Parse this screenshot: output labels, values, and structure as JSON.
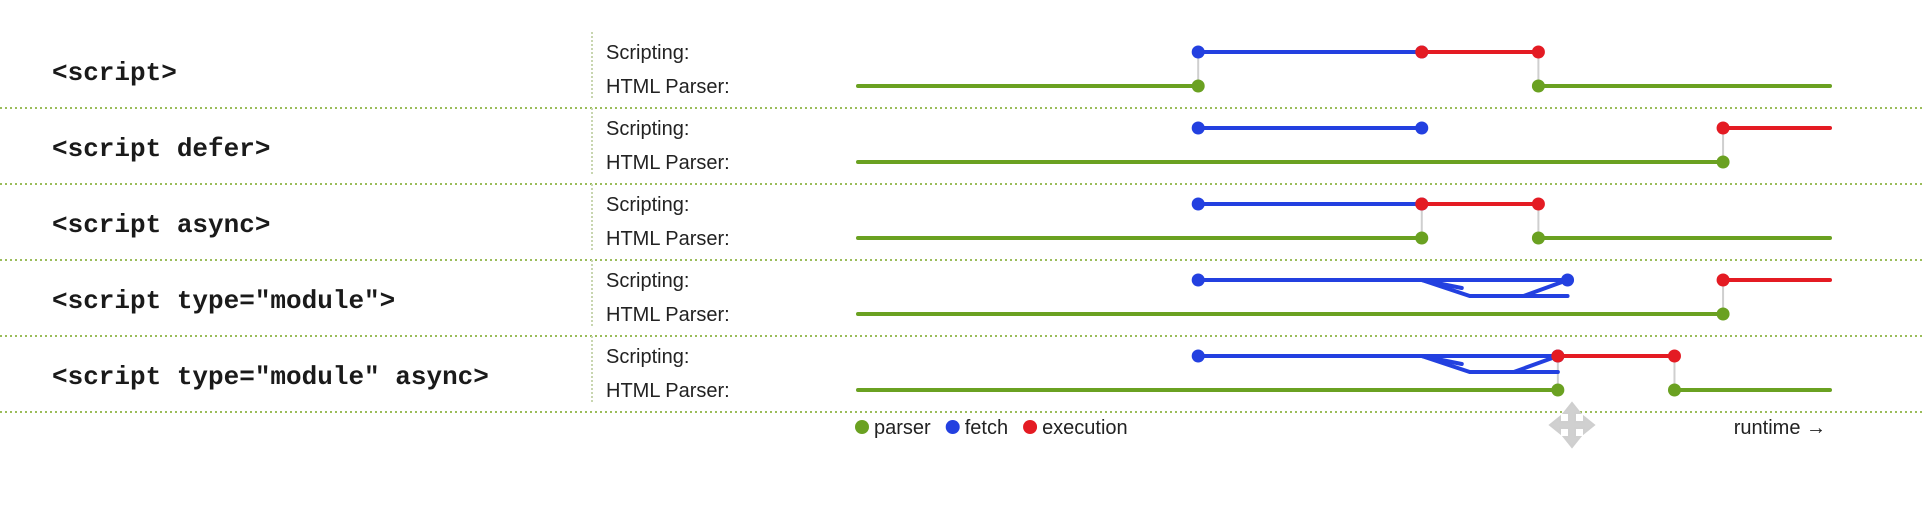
{
  "colors": {
    "parser": "#6aa121",
    "fetch": "#2340e0",
    "execution": "#e41b23"
  },
  "track_labels": {
    "scripting": "Scripting:",
    "parser": "HTML Parser:"
  },
  "rows": [
    {
      "tag": "<script>",
      "parser": [
        [
          0,
          35
        ],
        [
          70,
          100
        ]
      ],
      "fetch": [
        [
          35,
          58
        ]
      ],
      "execution": [
        [
          58,
          70
        ]
      ],
      "links": [
        35,
        70
      ]
    },
    {
      "tag": "<script defer>",
      "parser": [
        [
          0,
          89
        ]
      ],
      "fetch": [
        [
          35,
          58
        ]
      ],
      "execution": [
        [
          89,
          100
        ]
      ],
      "links": [
        89
      ]
    },
    {
      "tag": "<script async>",
      "parser": [
        [
          0,
          58
        ],
        [
          70,
          100
        ]
      ],
      "fetch": [
        [
          35,
          58
        ]
      ],
      "execution": [
        [
          58,
          70
        ]
      ],
      "links": [
        58,
        70
      ]
    },
    {
      "tag": "<script type=\"module\">",
      "parser": [
        [
          0,
          89
        ]
      ],
      "fetch": [
        [
          35,
          73
        ]
      ],
      "fetch_branch": [
        58,
        73
      ],
      "execution": [
        [
          89,
          100
        ]
      ],
      "links": [
        89
      ]
    },
    {
      "tag": "<script type=\"module\" async>",
      "parser": [
        [
          0,
          72
        ],
        [
          84,
          100
        ]
      ],
      "fetch": [
        [
          35,
          72
        ]
      ],
      "fetch_branch": [
        58,
        72
      ],
      "execution": [
        [
          72,
          84
        ]
      ],
      "links": [
        72,
        84
      ]
    }
  ],
  "legend": [
    {
      "key": "parser",
      "label": "parser"
    },
    {
      "key": "fetch",
      "label": "fetch"
    },
    {
      "key": "execution",
      "label": "execution"
    }
  ],
  "axis_label": "runtime →",
  "icons": [
    "move-cursor-icon"
  ]
}
